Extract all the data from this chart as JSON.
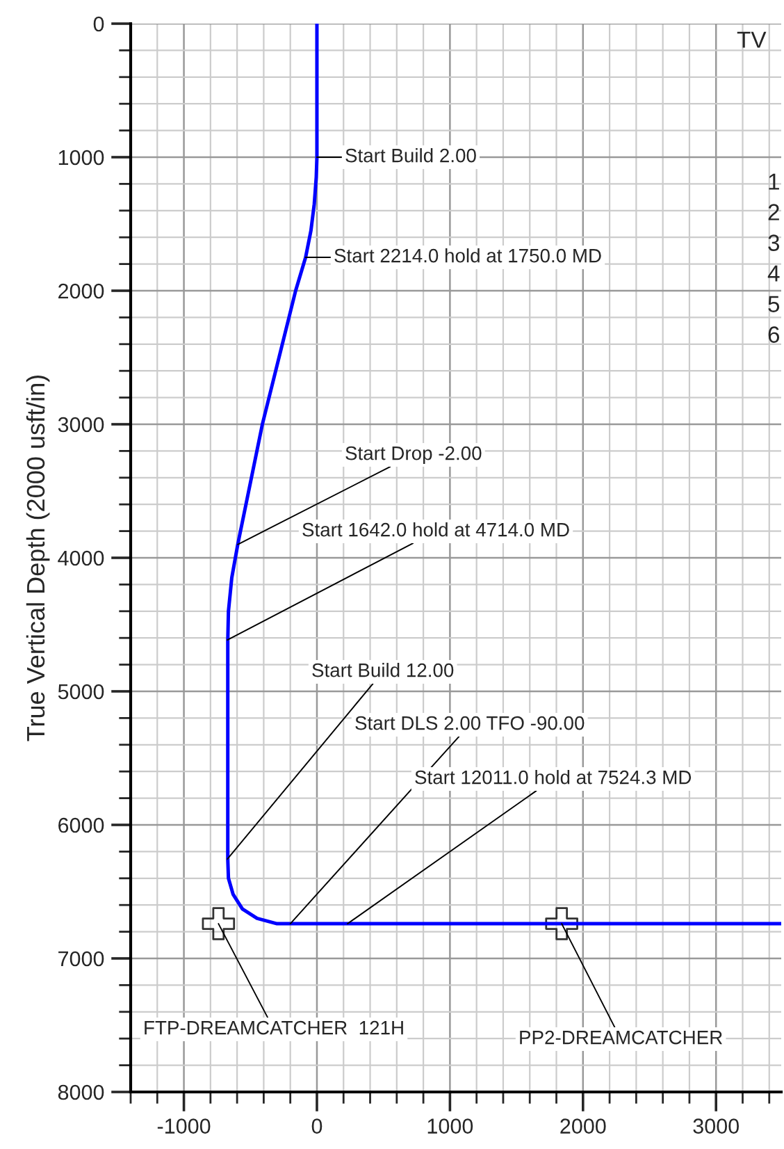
{
  "chart_data": {
    "type": "line",
    "ylabel": "True Vertical Depth (2000 usft/in)",
    "xlim": [
      -1400,
      3490
    ],
    "xticks": [
      -1000,
      0,
      1000,
      2000,
      3000
    ],
    "ylim": [
      8000,
      0
    ],
    "yticks": [
      0,
      1000,
      2000,
      3000,
      4000,
      5000,
      6000,
      7000,
      8000
    ],
    "grid": true,
    "marker": "none",
    "line_style": "solid",
    "series": [
      {
        "color": "#0000ff",
        "x": [
          0,
          0,
          -5,
          -20,
          -45,
          -85,
          -160,
          -410,
          -595,
          -640,
          -665,
          -670,
          -670,
          -665,
          -630,
          -560,
          -450,
          -300,
          -200,
          230,
          1840,
          3490
        ],
        "values": [
          0,
          1000,
          1150,
          1350,
          1550,
          1750,
          2000,
          3000,
          3900,
          4150,
          4400,
          4620,
          6260,
          6400,
          6520,
          6630,
          6700,
          6740,
          6740,
          6740,
          6740,
          6740
        ]
      },
      {
        "type": "scatter",
        "color": "#333333",
        "marker": "cross",
        "x": [
          -740,
          1840
        ],
        "values": [
          6740,
          6740
        ]
      }
    ],
    "annotations": [
      {
        "text": "Start Build 2.00",
        "x": 0,
        "y": 1000
      },
      {
        "text": "Start 2214.0 hold at 1750.0 MD",
        "x": -85,
        "y": 1750
      },
      {
        "text": "Start Drop -2.00",
        "x": -595,
        "y": 3900
      },
      {
        "text": "Start 1642.0 hold at 4714.0 MD",
        "x": -673,
        "y": 4615
      },
      {
        "text": "Start Build 12.00",
        "x": -673,
        "y": 6256
      },
      {
        "text": "Start DLS 2.00 TFO -90.00",
        "x": -200,
        "y": 6740
      },
      {
        "text": "Start 12011.0 hold at 7524.3 MD",
        "x": 230,
        "y": 6740
      },
      {
        "text": "FTP-DREAMCATCHER  121H",
        "x": -740,
        "y": 6740
      },
      {
        "text": "PP2-DREAMCATCHER",
        "x": 1840,
        "y": 6740
      },
      "TV",
      "1",
      "2",
      "3",
      "4",
      "5",
      "6"
    ]
  }
}
